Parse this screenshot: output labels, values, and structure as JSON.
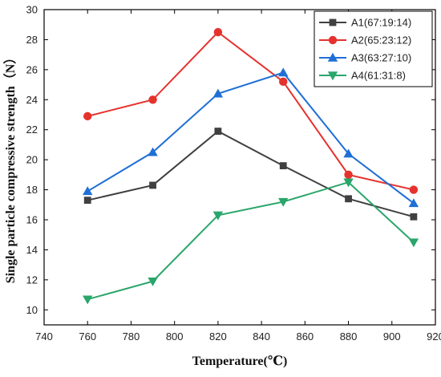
{
  "chart_data": {
    "type": "line",
    "title": "",
    "xlabel": "Temperature(℃)",
    "ylabel": "Single particle compressive strength（N）",
    "xlim": [
      740,
      920
    ],
    "ylim": [
      9,
      30
    ],
    "xticks": [
      740,
      760,
      780,
      800,
      820,
      840,
      860,
      880,
      900,
      920
    ],
    "yticks": [
      10,
      12,
      14,
      16,
      18,
      20,
      22,
      24,
      26,
      28,
      30
    ],
    "grid": false,
    "legend_position": "top-right",
    "series": [
      {
        "name": "A1(67:19:14)",
        "color": "#404040",
        "marker": "square",
        "x": [
          760,
          790,
          820,
          850,
          880,
          910
        ],
        "values": [
          17.3,
          18.3,
          21.9,
          19.6,
          17.4,
          16.2
        ]
      },
      {
        "name": "A2(65:23:12)",
        "color": "#e5322d",
        "marker": "circle",
        "x": [
          760,
          790,
          820,
          850,
          880,
          910
        ],
        "values": [
          22.9,
          24.0,
          28.5,
          25.2,
          19.0,
          18.0
        ]
      },
      {
        "name": "A3(63:27:10)",
        "color": "#1f6fd6",
        "marker": "triangle-up",
        "x": [
          760,
          790,
          820,
          850,
          880,
          910
        ],
        "values": [
          17.9,
          20.5,
          24.4,
          25.8,
          20.4,
          17.1
        ]
      },
      {
        "name": "A4(61:31:8)",
        "color": "#2aa66a",
        "marker": "triangle-down",
        "x": [
          760,
          790,
          820,
          850,
          880,
          910
        ],
        "values": [
          10.7,
          11.9,
          16.3,
          17.2,
          18.5,
          14.5
        ]
      }
    ]
  }
}
